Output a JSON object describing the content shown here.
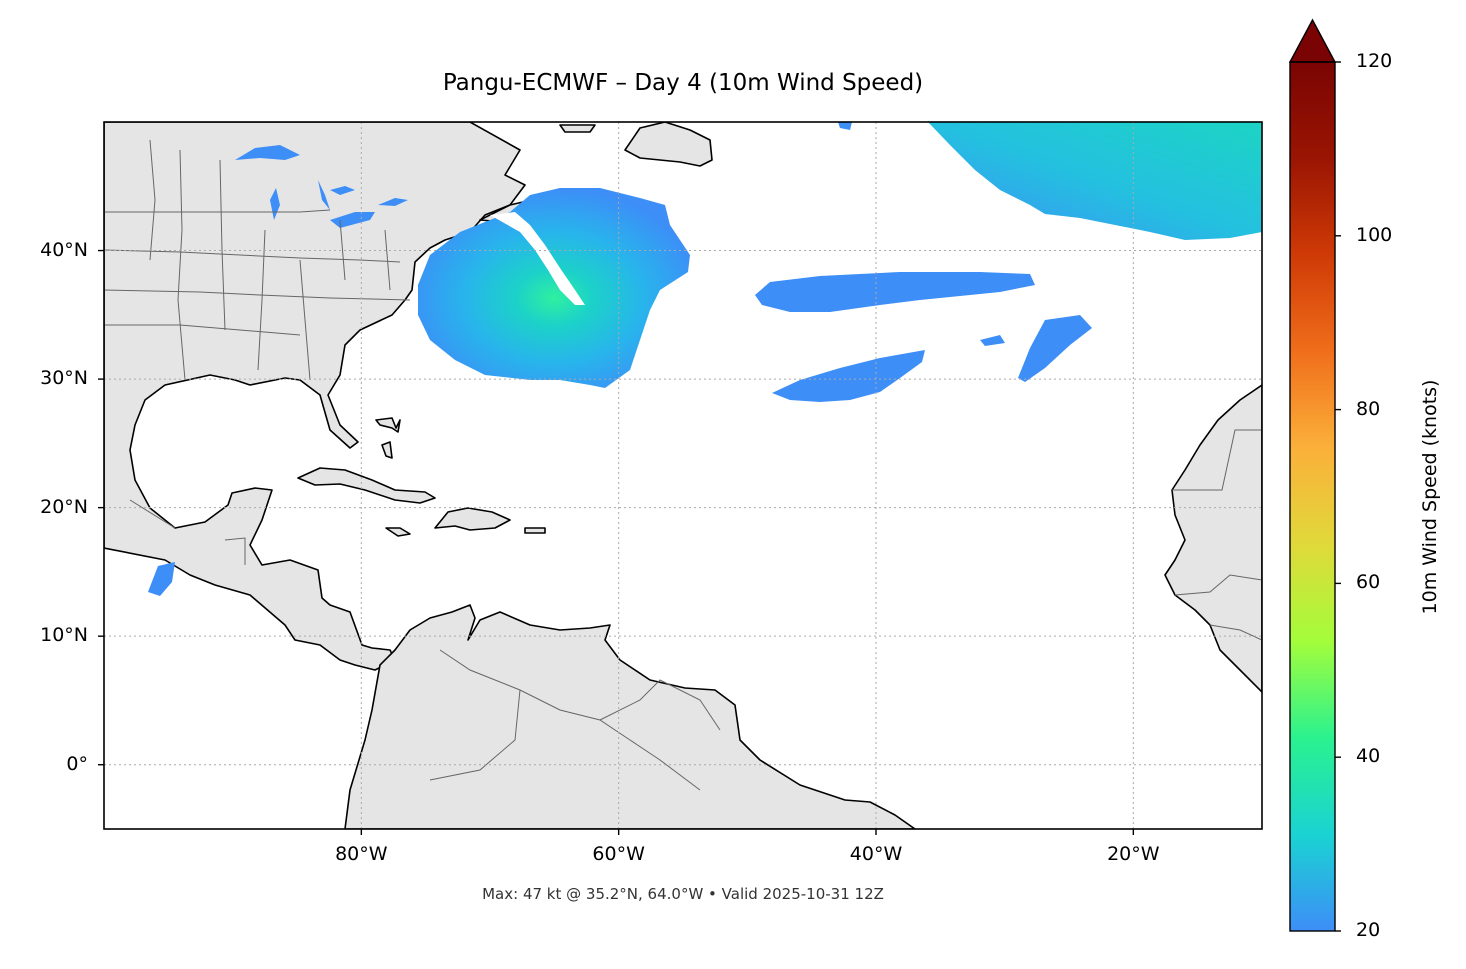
{
  "title": "Pangu-ECMWF – Day 4 (10m Wind Speed)",
  "footer": "Max: 47 kt @ 35.2°N, 64.0°W • Valid 2025-10-31 12Z",
  "map": {
    "extent": {
      "lon_min": -100,
      "lon_max": -10,
      "lat_min": -5,
      "lat_max": 50
    },
    "gridlines": true,
    "lat_ticks": [
      {
        "value": 40,
        "label": "40°N"
      },
      {
        "value": 30,
        "label": "30°N"
      },
      {
        "value": 20,
        "label": "20°N"
      },
      {
        "value": 10,
        "label": "10°N"
      },
      {
        "value": 0,
        "label": "0°"
      }
    ],
    "lon_ticks": [
      {
        "value": -80,
        "label": "80°W"
      },
      {
        "value": -60,
        "label": "60°W"
      },
      {
        "value": -40,
        "label": "40°W"
      },
      {
        "value": -20,
        "label": "20°W"
      }
    ],
    "land_color": "#e5e5e5",
    "coast_color": "#000000",
    "border_color": "#666666",
    "max_point": {
      "lat": 35.2,
      "lon": -64.0,
      "value_kt": 47
    }
  },
  "colorbar": {
    "label": "10m Wind Speed (knots)",
    "min": 20,
    "max": 120,
    "extend": "max",
    "ticks": [
      {
        "value": 20,
        "label": "20"
      },
      {
        "value": 40,
        "label": "40"
      },
      {
        "value": 60,
        "label": "60"
      },
      {
        "value": 80,
        "label": "80"
      },
      {
        "value": 100,
        "label": "100"
      },
      {
        "value": 120,
        "label": "120"
      }
    ],
    "colors": [
      "#3d8ef7",
      "#1ad3d2",
      "#2af28f",
      "#a3fd3b",
      "#e0d93a",
      "#fbb03a",
      "#f06e1b",
      "#cf3a06",
      "#9a1503",
      "#7a0403"
    ]
  }
}
